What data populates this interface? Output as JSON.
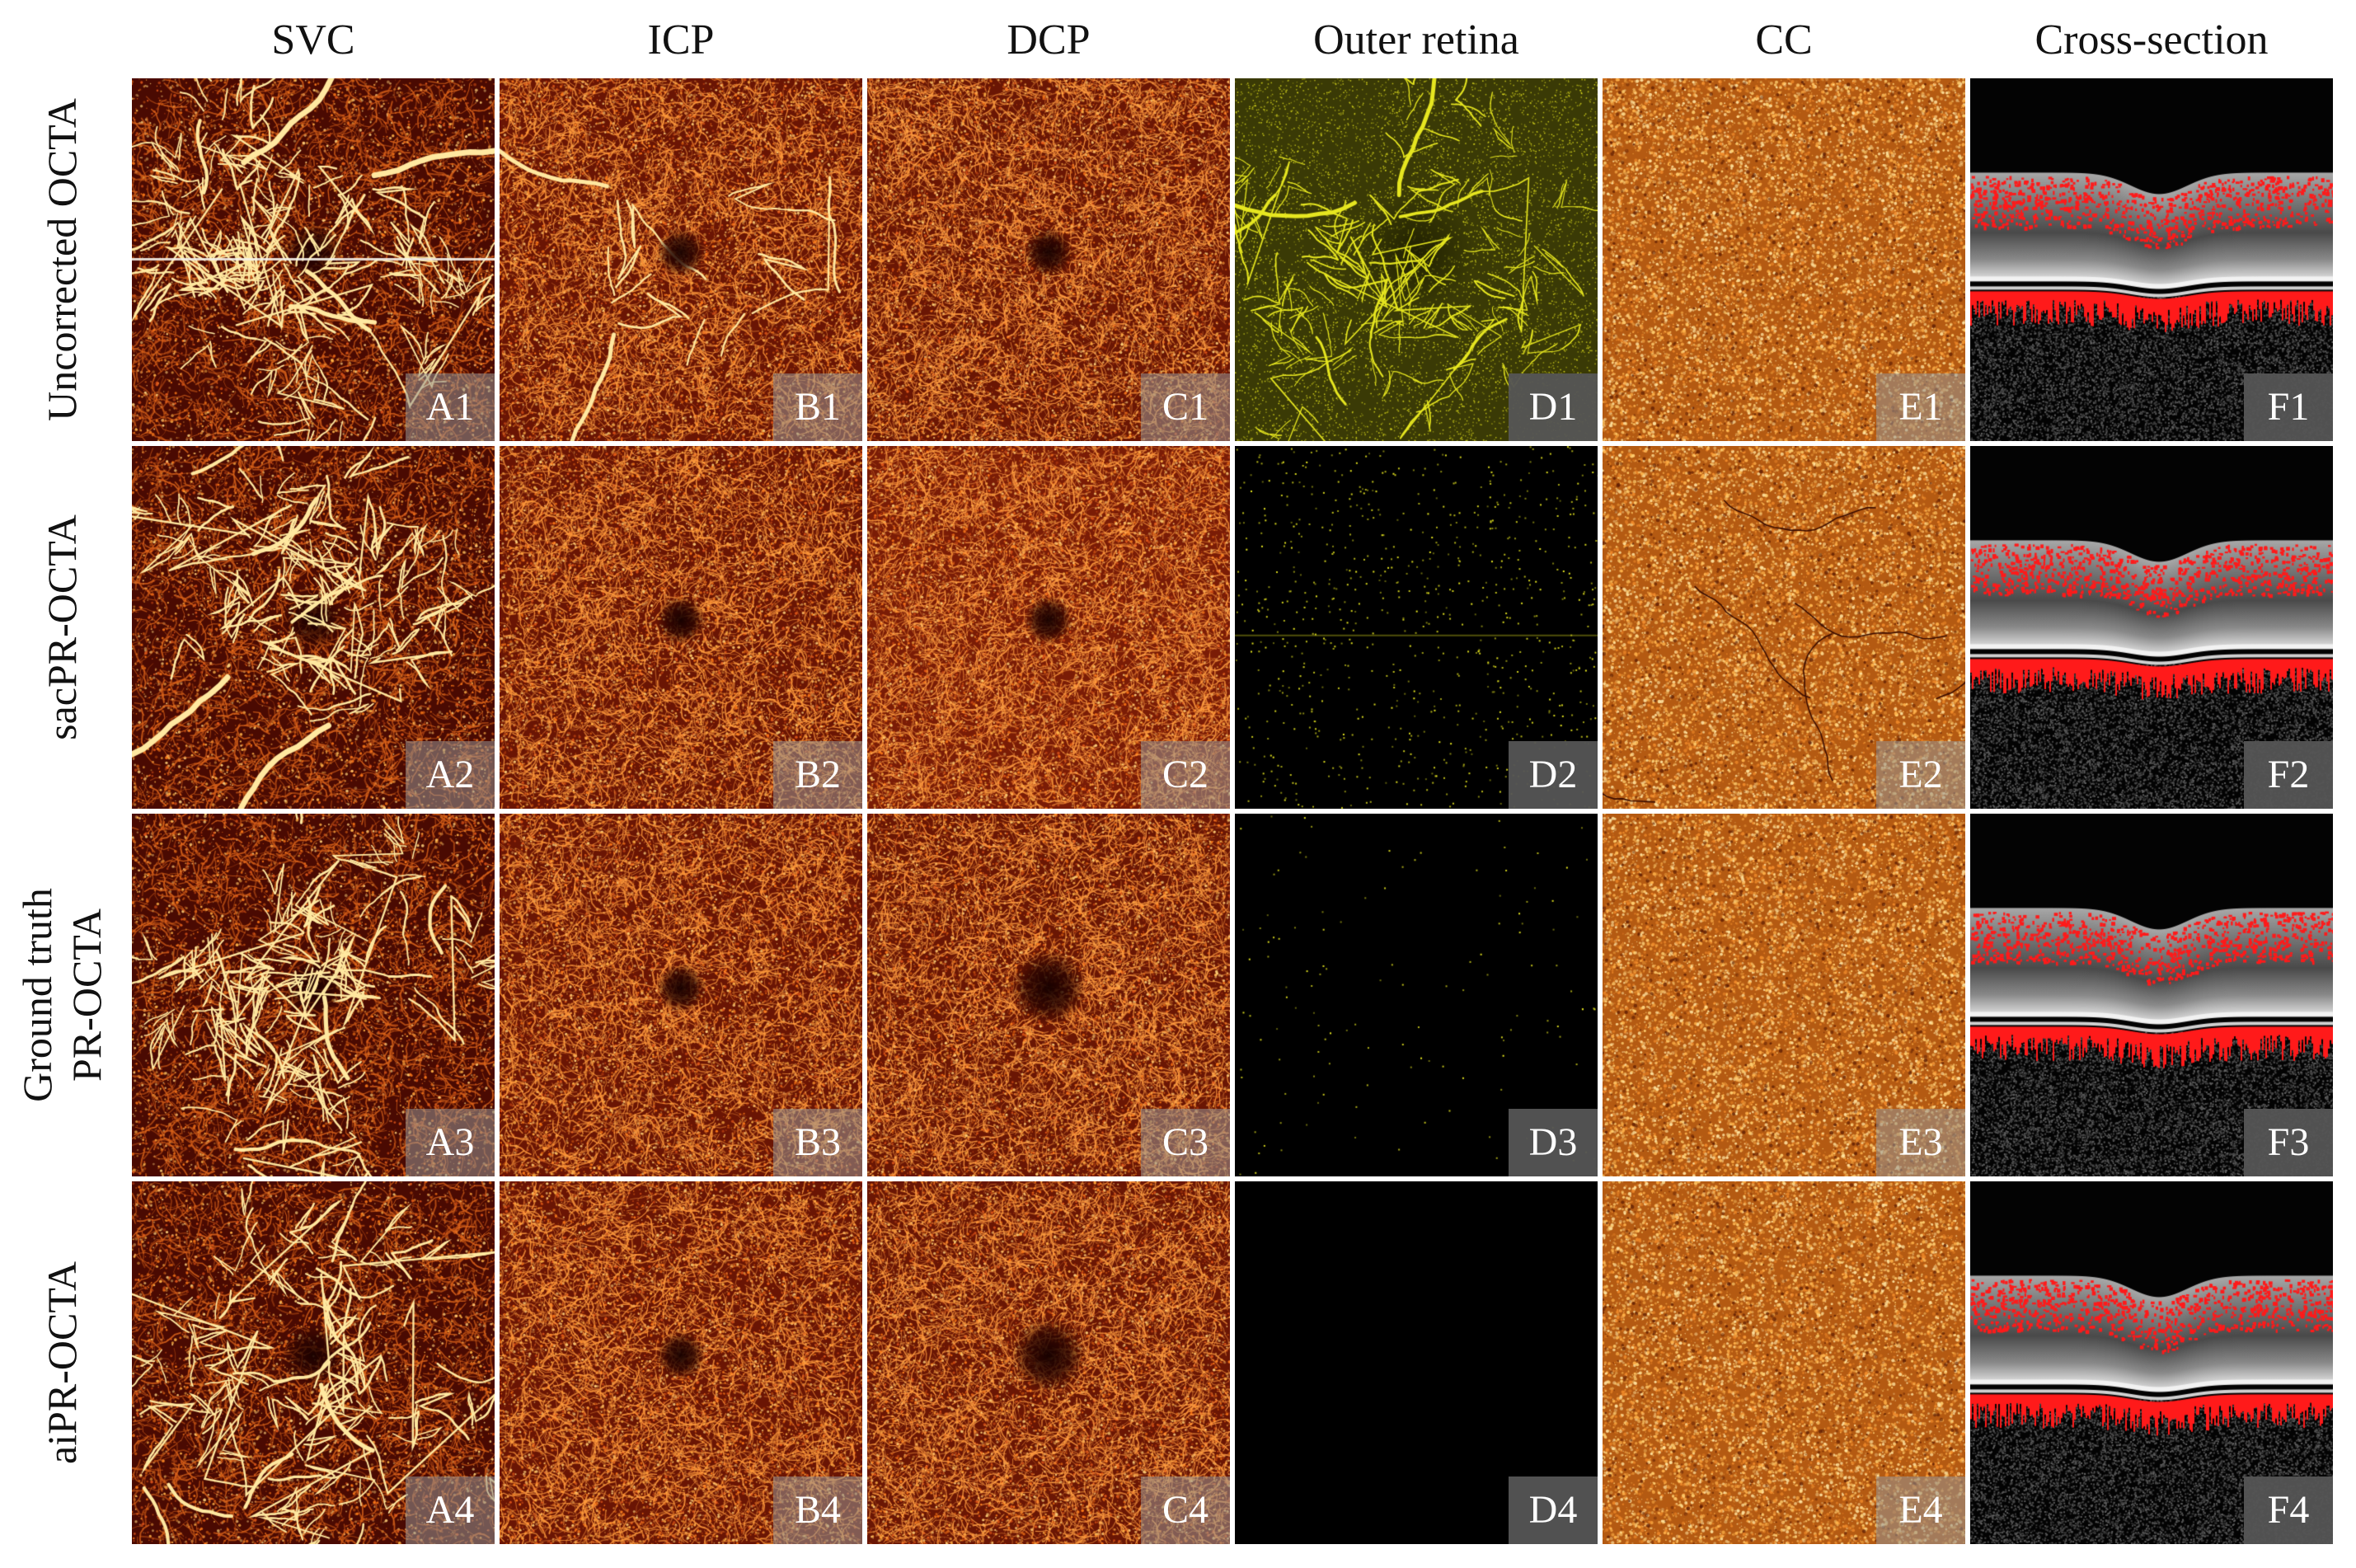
{
  "columns": [
    {
      "id": "A",
      "label": "SVC",
      "kind": "svc"
    },
    {
      "id": "B",
      "label": "ICP",
      "kind": "icp"
    },
    {
      "id": "C",
      "label": "DCP",
      "kind": "dcp"
    },
    {
      "id": "D",
      "label": "Outer retina",
      "kind": "outer"
    },
    {
      "id": "E",
      "label": "CC",
      "kind": "cc"
    },
    {
      "id": "F",
      "label": "Cross-section",
      "kind": "xsec"
    }
  ],
  "rows": [
    {
      "lines": [
        "Uncorrected OCTA"
      ]
    },
    {
      "lines": [
        "sacPR-OCTA"
      ]
    },
    {
      "lines": [
        "Ground truth",
        "PR-OCTA"
      ]
    },
    {
      "lines": [
        "aiPR-OCTA"
      ]
    }
  ],
  "panels": [
    [
      "A1",
      "B1",
      "C1",
      "D1",
      "E1",
      "F1"
    ],
    [
      "A2",
      "B2",
      "C2",
      "D2",
      "E2",
      "F2"
    ],
    [
      "A3",
      "B3",
      "C3",
      "D3",
      "E3",
      "F3"
    ],
    [
      "A4",
      "B4",
      "C4",
      "D4",
      "E4",
      "F4"
    ]
  ],
  "outer_retina_intensity": [
    1.0,
    0.25,
    0.04,
    0.0
  ],
  "colors": {
    "background": "#ffffff",
    "angio_dark": "#4a0a02",
    "angio_mid": "#b4400a",
    "angio_bright": "#ffe8a0",
    "outer_retina": "#e6e620",
    "overlay_red": "#ff1a1a",
    "tag_light": "#969696",
    "tag_dark": "#555555"
  }
}
